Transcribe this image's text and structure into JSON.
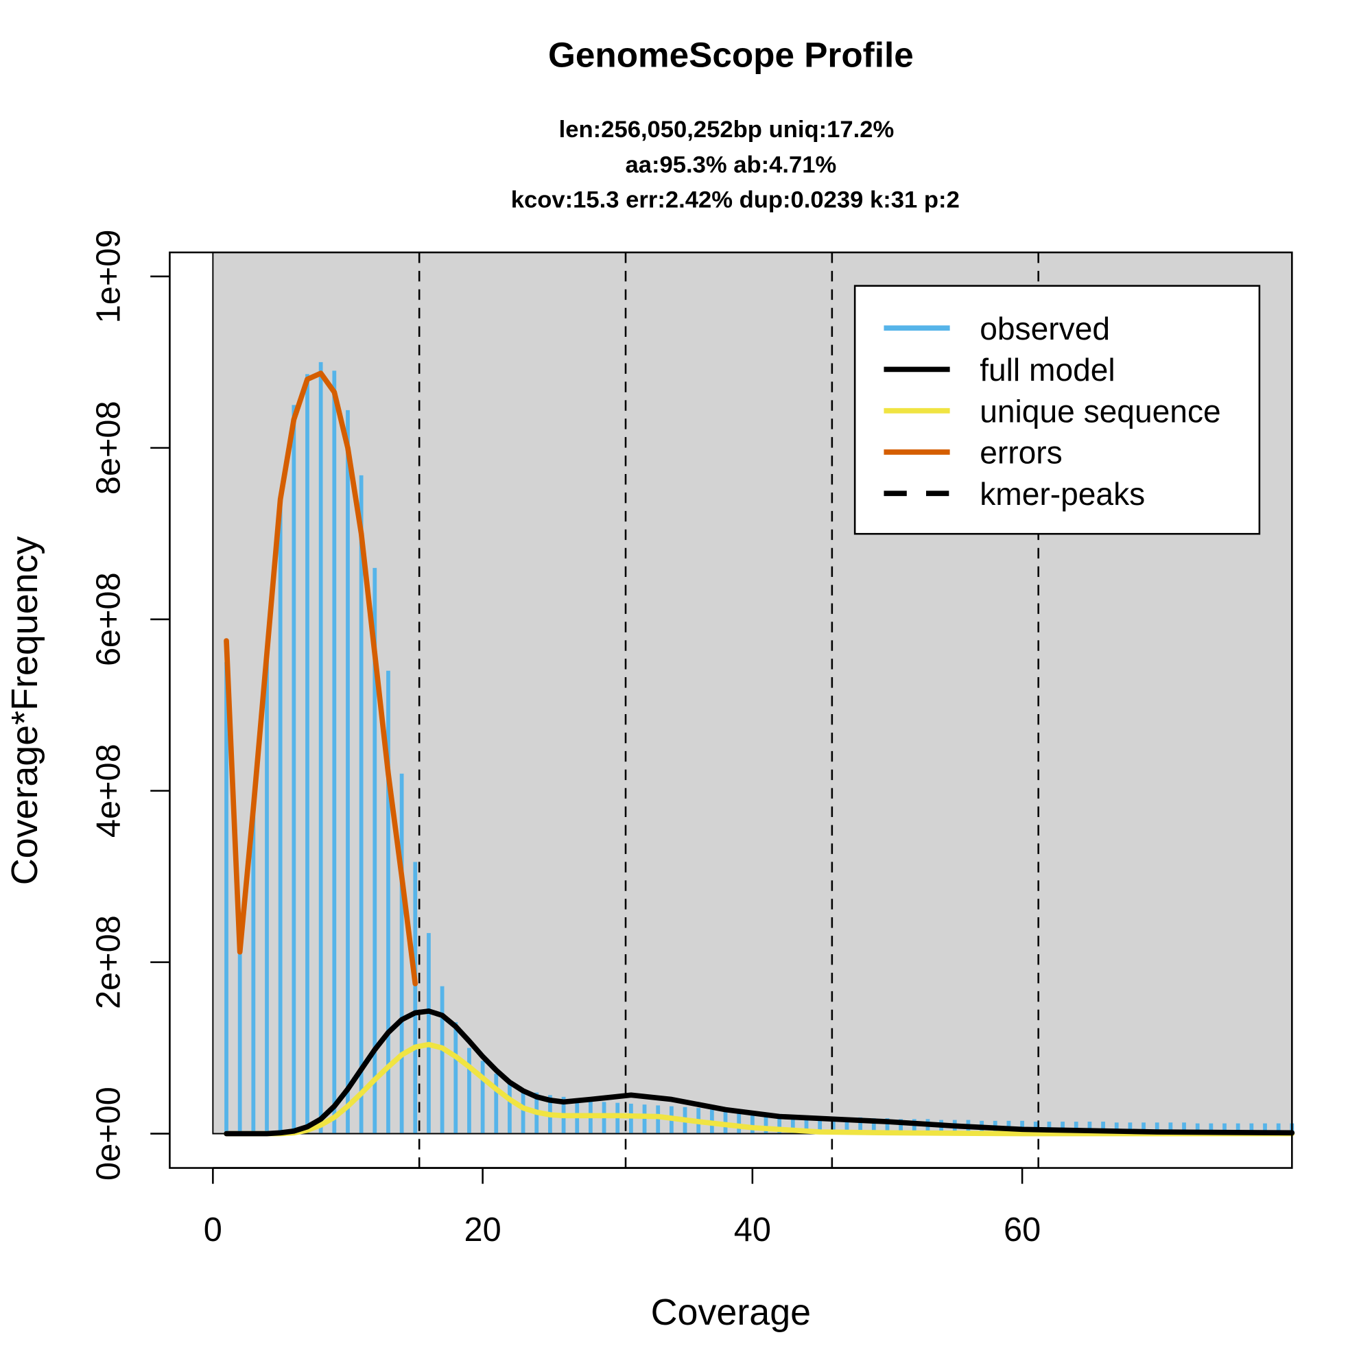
{
  "chart_data": {
    "type": "bar",
    "title": "GenomeScope Profile",
    "subtitle_lines": [
      "len:256,050,252bp uniq:17.2%",
      "aa:95.3% ab:4.71%",
      "kcov:15.3 err:2.42%  dup:0.0239  k:31 p:2"
    ],
    "xlabel": "Coverage",
    "ylabel": "Coverage*Frequency",
    "xlim": [
      -3.2,
      80
    ],
    "ylim": [
      -40000000,
      1028000000
    ],
    "xticks": [
      0,
      20,
      40,
      60
    ],
    "xtick_labels": [
      "0",
      "20",
      "40",
      "60"
    ],
    "yticks": [
      0,
      200000000,
      400000000,
      600000000,
      800000000,
      1000000000
    ],
    "ytick_labels": [
      "0e+00",
      "2e+08",
      "4e+08",
      "6e+08",
      "8e+08",
      "1e+09"
    ],
    "background": "#d3d3d3",
    "legend_position": "top-right",
    "legend": [
      {
        "label": "observed",
        "color": "#56b4e9",
        "style": "solid"
      },
      {
        "label": "full model",
        "color": "#000000",
        "style": "solid"
      },
      {
        "label": "unique sequence",
        "color": "#f0e442",
        "style": "solid"
      },
      {
        "label": "errors",
        "color": "#d55e00",
        "style": "solid"
      },
      {
        "label": "kmer-peaks",
        "color": "#000000",
        "style": "dashed"
      }
    ],
    "observed": {
      "x_start": 1,
      "values_e8": [
        5.5,
        2.1,
        3.8,
        5.6,
        7.4,
        8.5,
        8.86,
        9.0,
        8.9,
        8.44,
        7.68,
        6.6,
        5.4,
        4.2,
        3.17,
        2.34,
        1.72,
        1.3,
        1.0,
        0.85,
        0.7,
        0.6,
        0.52,
        0.48,
        0.45,
        0.43,
        0.41,
        0.39,
        0.37,
        0.36,
        0.35,
        0.34,
        0.33,
        0.32,
        0.31,
        0.3,
        0.28,
        0.27,
        0.26,
        0.25,
        0.24,
        0.23,
        0.22,
        0.21,
        0.2,
        0.2,
        0.19,
        0.19,
        0.18,
        0.18,
        0.17,
        0.17,
        0.17,
        0.16,
        0.16,
        0.16,
        0.15,
        0.15,
        0.15,
        0.15,
        0.14,
        0.14,
        0.14,
        0.14,
        0.14,
        0.14,
        0.13,
        0.13,
        0.13,
        0.13,
        0.13,
        0.13,
        0.12,
        0.12,
        0.12,
        0.12,
        0.12,
        0.12,
        0.12,
        0.12
      ]
    },
    "full_model": {
      "x": [
        1,
        4,
        5,
        6,
        7,
        8,
        9,
        10,
        11,
        12,
        13,
        14,
        15,
        16,
        17,
        18,
        19,
        20,
        21,
        22,
        23,
        24,
        25,
        26,
        28,
        31,
        34,
        38,
        42,
        46,
        50,
        55,
        60,
        70,
        80
      ],
      "values_e8": [
        0,
        0,
        0.01,
        0.03,
        0.08,
        0.17,
        0.32,
        0.52,
        0.75,
        0.98,
        1.18,
        1.33,
        1.41,
        1.43,
        1.38,
        1.25,
        1.08,
        0.9,
        0.74,
        0.6,
        0.5,
        0.43,
        0.39,
        0.37,
        0.4,
        0.45,
        0.4,
        0.28,
        0.2,
        0.17,
        0.14,
        0.09,
        0.05,
        0.02,
        0.01
      ]
    },
    "unique_sequence": {
      "x": [
        1,
        5,
        6,
        7,
        8,
        9,
        10,
        11,
        12,
        13,
        14,
        15,
        16,
        17,
        18,
        19,
        20,
        21,
        22,
        23,
        24,
        25,
        26,
        28,
        30,
        33,
        36,
        40,
        45,
        50,
        60,
        80
      ],
      "values_e8": [
        0,
        0,
        0.01,
        0.04,
        0.1,
        0.19,
        0.32,
        0.47,
        0.63,
        0.78,
        0.92,
        1.01,
        1.04,
        1.0,
        0.9,
        0.78,
        0.65,
        0.52,
        0.4,
        0.3,
        0.25,
        0.22,
        0.21,
        0.21,
        0.21,
        0.2,
        0.14,
        0.07,
        0.02,
        0.01,
        0,
        0
      ]
    },
    "errors": {
      "x": [
        1,
        2,
        3,
        4,
        5,
        6,
        7,
        8,
        9,
        10,
        11,
        12,
        13,
        14,
        15
      ],
      "values_e8": [
        5.75,
        2.12,
        3.8,
        5.6,
        7.4,
        8.33,
        8.8,
        8.87,
        8.65,
        8.0,
        7.0,
        5.6,
        4.2,
        3.0,
        1.75
      ]
    },
    "kmer_peaks": [
      15.3,
      30.6,
      45.9,
      61.2
    ]
  }
}
